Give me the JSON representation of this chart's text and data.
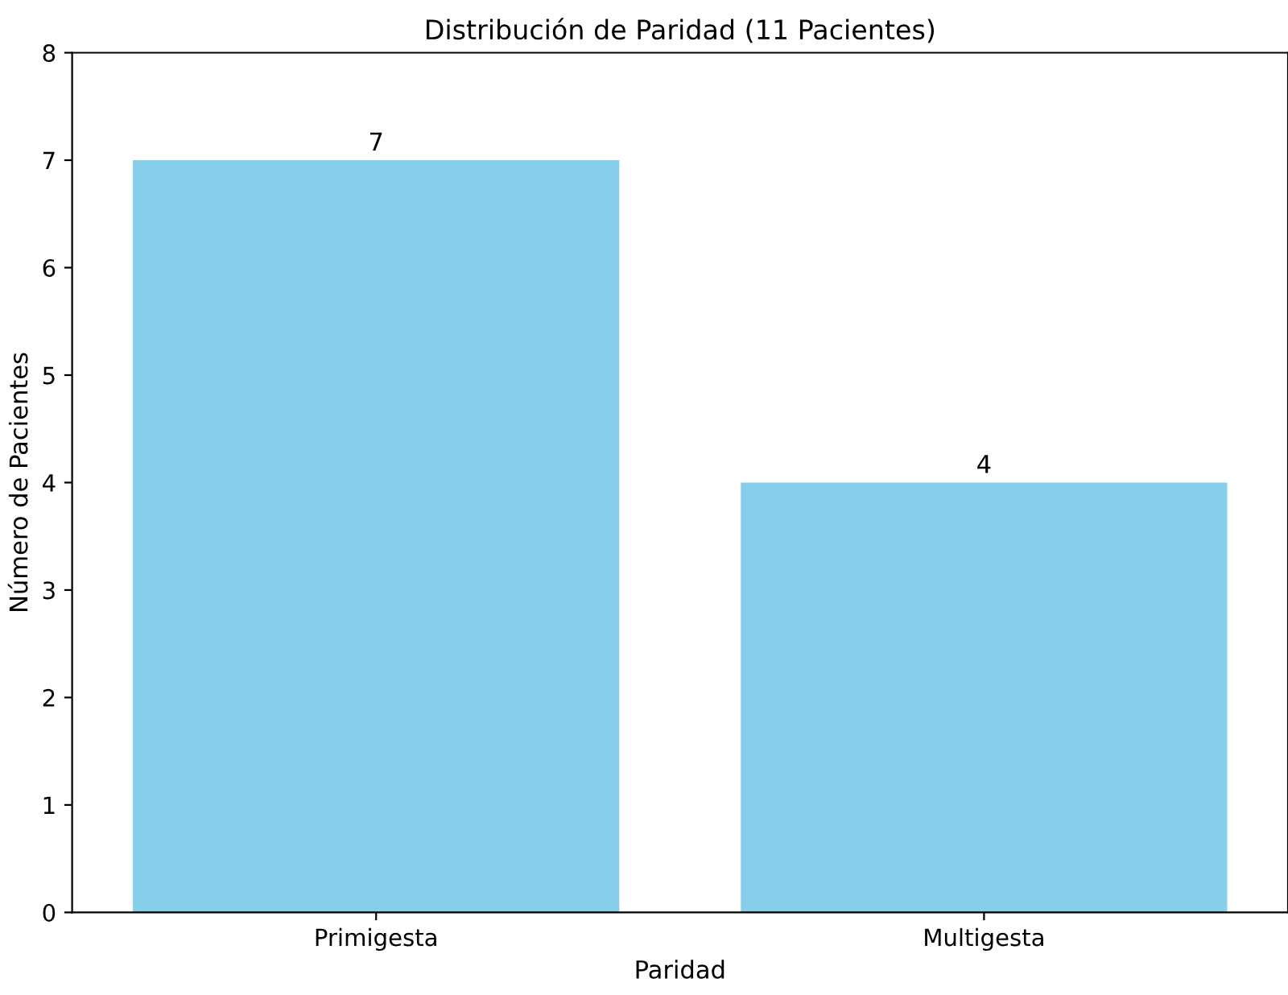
{
  "chart_data": {
    "type": "bar",
    "title": "Distribución de Paridad (11 Pacientes)",
    "xlabel": "Paridad",
    "ylabel": "Número de Pacientes",
    "categories": [
      "Primigesta",
      "Multigesta"
    ],
    "values": [
      7,
      4
    ],
    "color": "#87ceeb",
    "ylim": [
      0,
      8
    ],
    "yticks": [
      0,
      1,
      2,
      3,
      4,
      5,
      6,
      7,
      8
    ],
    "data_labels": true,
    "grid": false,
    "legend": false
  }
}
